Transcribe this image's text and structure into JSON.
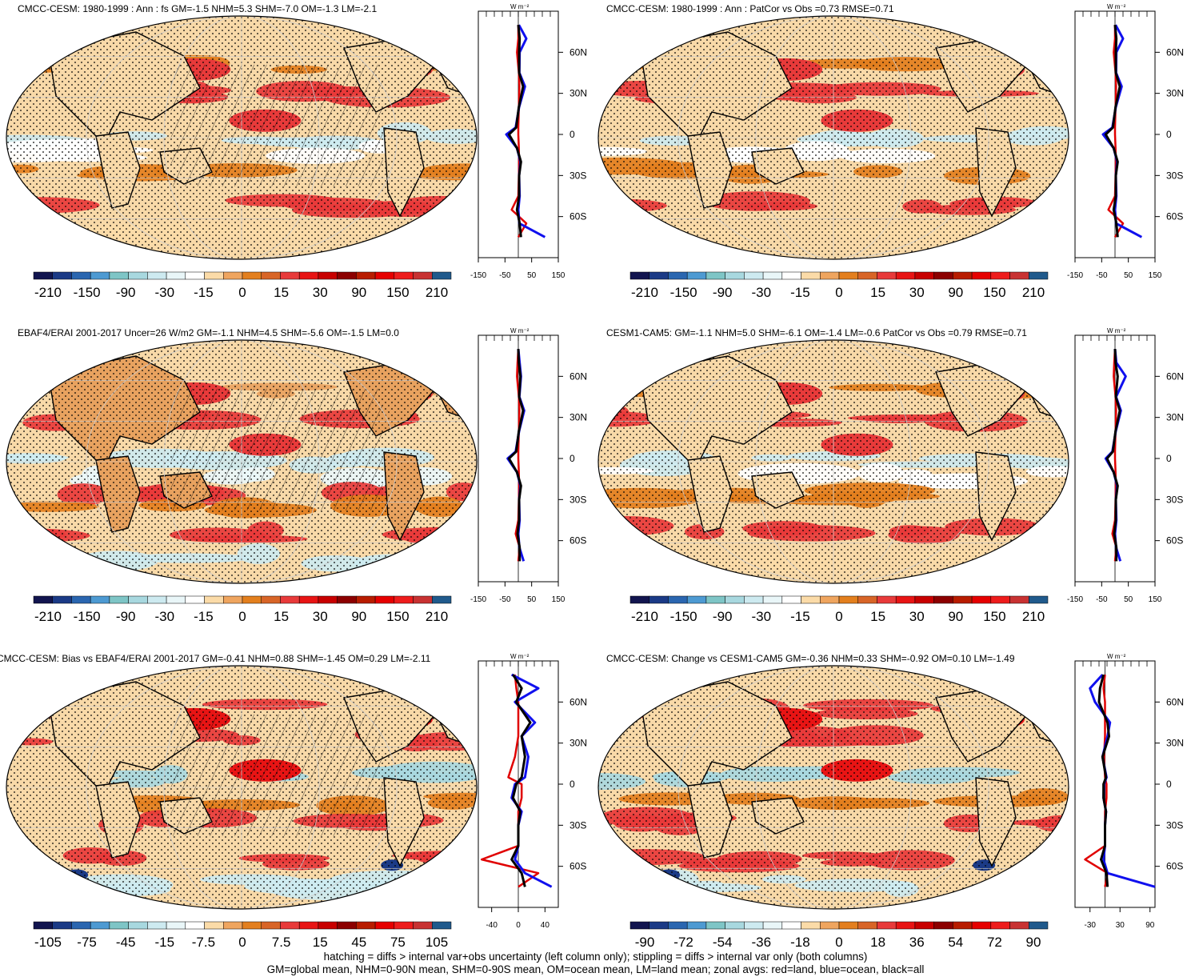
{
  "panels": [
    {
      "id": "p1",
      "title": "CMCC-CESM: 1980-1999 : Ann : fs GM=-1.5 NHM=5.3 SHM=-7.0 OM=-1.3 LM=-2.1",
      "colorbar_labels": [
        "-210",
        "-150",
        "-90",
        "-30",
        "-15",
        "0",
        "15",
        "30",
        "90",
        "150",
        "210"
      ],
      "zonal_xticks": [
        "-150",
        "-50",
        "50",
        "150"
      ],
      "zonal_xlim": [
        -150,
        150
      ],
      "zonal_unit": "W m⁻²",
      "hatched": true,
      "type": "a"
    },
    {
      "id": "p2",
      "title": "CMCC-CESM: 1980-1999 : Ann : PatCor vs Obs =0.73 RMSE=0.71",
      "colorbar_labels": [
        "-210",
        "-150",
        "-90",
        "-30",
        "-15",
        "0",
        "15",
        "30",
        "90",
        "150",
        "210"
      ],
      "zonal_xticks": [
        "-150",
        "-50",
        "50",
        "150"
      ],
      "zonal_xlim": [
        -150,
        150
      ],
      "zonal_unit": "W m⁻²",
      "hatched": false,
      "type": "a"
    },
    {
      "id": "p3",
      "title": "EBAF4/ERAI 2001-2017 Uncer=26 W/m2 GM=-1.1 NHM=4.5 SHM=-5.6 OM=-1.5 LM=0.0",
      "colorbar_labels": [
        "-210",
        "-150",
        "-90",
        "-30",
        "-15",
        "0",
        "15",
        "30",
        "90",
        "150",
        "210"
      ],
      "zonal_xticks": [
        "-150",
        "-50",
        "50",
        "150"
      ],
      "zonal_xlim": [
        -150,
        150
      ],
      "zonal_unit": "W m⁻²",
      "hatched": true,
      "type": "b"
    },
    {
      "id": "p4",
      "title": "CESM1-CAM5: GM=-1.1 NHM=5.0 SHM=-6.1 OM=-1.4 LM=-0.6 PatCor vs Obs =0.79 RMSE=0.71",
      "colorbar_labels": [
        "-210",
        "-150",
        "-90",
        "-30",
        "-15",
        "0",
        "15",
        "30",
        "90",
        "150",
        "210"
      ],
      "zonal_xticks": [
        "-150",
        "-50",
        "50",
        "150"
      ],
      "zonal_xlim": [
        -150,
        150
      ],
      "zonal_unit": "W m⁻²",
      "hatched": false,
      "type": "a"
    },
    {
      "id": "p5",
      "title": "CMCC-CESM: Bias vs EBAF4/ERAI 2001-2017 GM=-0.41 NHM=0.88 SHM=-1.45 OM=0.29 LM=-2.11",
      "colorbar_labels": [
        "-105",
        "-75",
        "-45",
        "-15",
        "-7.5",
        "0",
        "7.5",
        "15",
        "45",
        "75",
        "105"
      ],
      "zonal_xticks": [
        "-40",
        "0",
        "40"
      ],
      "zonal_xlim": [
        -60,
        60
      ],
      "zonal_unit": "W m⁻²",
      "hatched": true,
      "type": "c"
    },
    {
      "id": "p6",
      "title": "CMCC-CESM: Change vs CESM1-CAM5 GM=-0.36 NHM=0.33 SHM=-0.92 OM=0.10 LM=-1.49",
      "colorbar_labels": [
        "-90",
        "-72",
        "-54",
        "-36",
        "-18",
        "0",
        "18",
        "36",
        "54",
        "72",
        "90"
      ],
      "zonal_xticks": [
        "-30",
        "30",
        "90"
      ],
      "zonal_xlim": [
        -60,
        100
      ],
      "zonal_unit": "W m⁻²",
      "hatched": false,
      "type": "c"
    }
  ],
  "lat_ticks": [
    "60N",
    "30N",
    "0",
    "30S",
    "60S"
  ],
  "colorbar_colors": [
    "#12154f",
    "#1b3a86",
    "#2a66b0",
    "#4d9ad2",
    "#7ec5c6",
    "#a8d8df",
    "#cdeaf0",
    "#e9f6f8",
    "#ffffff",
    "#fbdba8",
    "#efa55f",
    "#e37f1e",
    "#d86527",
    "#e83a3a",
    "#e81414",
    "#c80000",
    "#8c0000",
    "#b81c00",
    "#e60000",
    "#ee1c1c",
    "#c83232",
    "#205a8c"
  ],
  "footer": {
    "line1": "hatching = diffs > internal var+obs uncertainty (left column only); stippling = diffs > internal var only (both columns)",
    "line2": "GM=global mean, NHM=0-90N mean, SHM=0-90S mean, OM=ocean mean, LM=land mean; zonal avgs: red=land, blue=ocean, black=all"
  },
  "chart_data": [
    {
      "type": "heatmap",
      "title": "CMCC-CESM: 1980-1999 : Ann : fs GM=-1.5 NHM=5.3 SHM=-7.0 OM=-1.3 LM=-2.1",
      "legend": [
        "red=land",
        "blue=ocean",
        "black=all"
      ],
      "zonal_lat": [
        80,
        70,
        60,
        45,
        35,
        20,
        5,
        0,
        -10,
        -20,
        -30,
        -45,
        -55,
        -65,
        -75
      ],
      "zonal_ocean": [
        2,
        30,
        5,
        4,
        25,
        3,
        -10,
        -45,
        -5,
        8,
        3,
        5,
        0,
        4,
        100
      ],
      "zonal_land": [
        0,
        0,
        -5,
        2,
        4,
        2,
        0,
        0,
        2,
        3,
        2,
        0,
        -25,
        30,
        0
      ],
      "zonal_all": [
        0,
        5,
        3,
        3,
        18,
        2,
        -8,
        -35,
        -5,
        10,
        3,
        3,
        -5,
        5,
        10
      ]
    },
    {
      "type": "heatmap",
      "title": "CMCC-CESM: 1980-1999 : Ann : PatCor vs Obs =0.73 RMSE=0.71",
      "zonal_lat": [
        80,
        70,
        60,
        45,
        35,
        20,
        5,
        0,
        -10,
        -20,
        -30,
        -45,
        -55,
        -65,
        -75
      ],
      "zonal_ocean": [
        2,
        30,
        5,
        4,
        25,
        3,
        -10,
        -45,
        -5,
        8,
        3,
        5,
        0,
        4,
        100
      ],
      "zonal_land": [
        0,
        0,
        -5,
        2,
        4,
        2,
        0,
        0,
        2,
        3,
        2,
        0,
        -25,
        30,
        0
      ],
      "zonal_all": [
        0,
        5,
        3,
        3,
        18,
        2,
        -8,
        -35,
        -5,
        10,
        3,
        3,
        -5,
        5,
        10
      ]
    },
    {
      "type": "heatmap",
      "title": "EBAF4/ERAI 2001-2017 Uncer=26 W/m2 GM=-1.1 NHM=4.5 SHM=-5.6 OM=-1.5 LM=0.0",
      "zonal_lat": [
        80,
        70,
        60,
        45,
        35,
        20,
        5,
        0,
        -10,
        -20,
        -30,
        -45,
        -55,
        -65,
        -75
      ],
      "zonal_ocean": [
        0,
        5,
        10,
        4,
        22,
        3,
        -10,
        -40,
        -5,
        8,
        3,
        5,
        0,
        4,
        20
      ],
      "zonal_land": [
        0,
        -3,
        -5,
        2,
        4,
        2,
        0,
        0,
        2,
        3,
        2,
        0,
        -10,
        5,
        0
      ],
      "zonal_all": [
        0,
        2,
        8,
        3,
        18,
        2,
        -8,
        -35,
        -5,
        10,
        3,
        3,
        -3,
        5,
        5
      ]
    },
    {
      "type": "heatmap",
      "title": "CESM1-CAM5: GM=-1.1 NHM=5.0 SHM=-6.1 OM=-1.4 LM=-0.6 PatCor vs Obs =0.79 RMSE=0.71",
      "zonal_lat": [
        80,
        70,
        60,
        45,
        35,
        20,
        5,
        0,
        -10,
        -20,
        -30,
        -45,
        -55,
        -65,
        -75
      ],
      "zonal_ocean": [
        0,
        5,
        40,
        4,
        22,
        3,
        -10,
        -35,
        -5,
        8,
        3,
        5,
        0,
        4,
        20
      ],
      "zonal_land": [
        0,
        -3,
        -5,
        2,
        4,
        2,
        0,
        0,
        2,
        3,
        2,
        0,
        -10,
        5,
        0
      ],
      "zonal_all": [
        0,
        2,
        10,
        3,
        18,
        2,
        -8,
        -30,
        -5,
        10,
        3,
        3,
        -3,
        5,
        5
      ]
    },
    {
      "type": "heatmap",
      "title": "CMCC-CESM: Bias vs EBAF4/ERAI 2001-2017 GM=-0.41 NHM=0.88 SHM=-1.45 OM=0.29 LM=-2.11",
      "zonal_lat": [
        80,
        70,
        60,
        45,
        35,
        20,
        5,
        0,
        -10,
        -20,
        -30,
        -45,
        -55,
        -65,
        -75
      ],
      "zonal_ocean": [
        -10,
        30,
        -5,
        25,
        5,
        15,
        10,
        -5,
        -10,
        5,
        0,
        0,
        -5,
        10,
        50
      ],
      "zonal_land": [
        -5,
        -3,
        0,
        0,
        0,
        -5,
        -15,
        5,
        5,
        0,
        0,
        0,
        -55,
        30,
        0
      ],
      "zonal_all": [
        -8,
        5,
        -3,
        18,
        5,
        10,
        5,
        -3,
        -8,
        3,
        0,
        0,
        -10,
        5,
        10
      ]
    },
    {
      "type": "heatmap",
      "title": "CMCC-CESM: Change vs CESM1-CAM5 GM=-0.36 NHM=0.33 SHM=-0.92 OM=0.10 LM=-1.49",
      "zonal_lat": [
        80,
        70,
        60,
        45,
        35,
        20,
        5,
        0,
        -10,
        -20,
        -30,
        -45,
        -55,
        -65,
        -75
      ],
      "zonal_ocean": [
        -5,
        -30,
        -20,
        10,
        5,
        -5,
        3,
        -2,
        -3,
        2,
        0,
        0,
        -3,
        5,
        100
      ],
      "zonal_land": [
        0,
        -3,
        0,
        0,
        0,
        -2,
        0,
        3,
        3,
        0,
        0,
        0,
        -40,
        5,
        0
      ],
      "zonal_all": [
        -3,
        -10,
        -12,
        5,
        8,
        -5,
        2,
        -3,
        -3,
        2,
        0,
        0,
        -8,
        3,
        5
      ]
    }
  ]
}
